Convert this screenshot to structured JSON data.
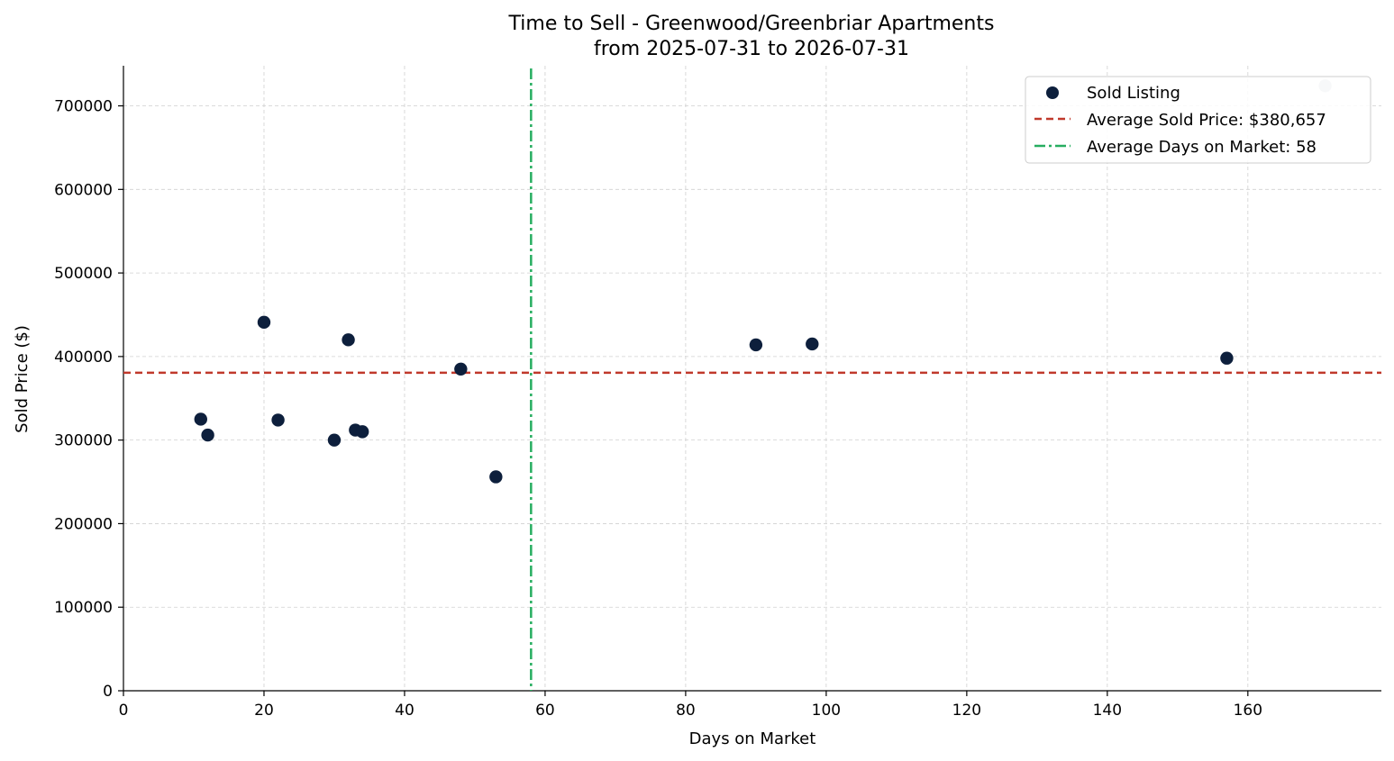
{
  "chart_data": {
    "type": "scatter",
    "title": "Time to Sell - Greenwood/Greenbriar Apartments",
    "subtitle": "from 2025-07-31 to 2026-07-31",
    "xlabel": "Days on Market",
    "ylabel": "Sold Price ($)",
    "xlim": [
      0,
      179
    ],
    "ylim": [
      0,
      748000
    ],
    "x_ticks": [
      0,
      20,
      40,
      60,
      80,
      100,
      120,
      140,
      160
    ],
    "y_ticks": [
      0,
      100000,
      200000,
      300000,
      400000,
      500000,
      600000,
      700000
    ],
    "grid": true,
    "legend_position": "top-right",
    "series": [
      {
        "name": "Sold Listing",
        "color": "#0d1f3c",
        "points": [
          {
            "x": 11,
            "y": 325000
          },
          {
            "x": 12,
            "y": 306000
          },
          {
            "x": 20,
            "y": 441000
          },
          {
            "x": 22,
            "y": 324000
          },
          {
            "x": 30,
            "y": 300000
          },
          {
            "x": 32,
            "y": 420000
          },
          {
            "x": 33,
            "y": 312000
          },
          {
            "x": 34,
            "y": 310000
          },
          {
            "x": 48,
            "y": 385000
          },
          {
            "x": 53,
            "y": 256000
          },
          {
            "x": 90,
            "y": 414000
          },
          {
            "x": 98,
            "y": 415000
          },
          {
            "x": 157,
            "y": 398000
          }
        ]
      },
      {
        "name": "",
        "color": "#c5cdd8",
        "points": [
          {
            "x": 171,
            "y": 724000
          }
        ]
      }
    ],
    "reference_lines": [
      {
        "orientation": "horizontal",
        "value": 380657,
        "style": "dashed",
        "color": "#c0392b",
        "label": "Average Sold Price: $380,657"
      },
      {
        "orientation": "vertical",
        "value": 58,
        "style": "dashdot",
        "color": "#27ae60",
        "label": "Average Days on Market: 58"
      }
    ]
  }
}
